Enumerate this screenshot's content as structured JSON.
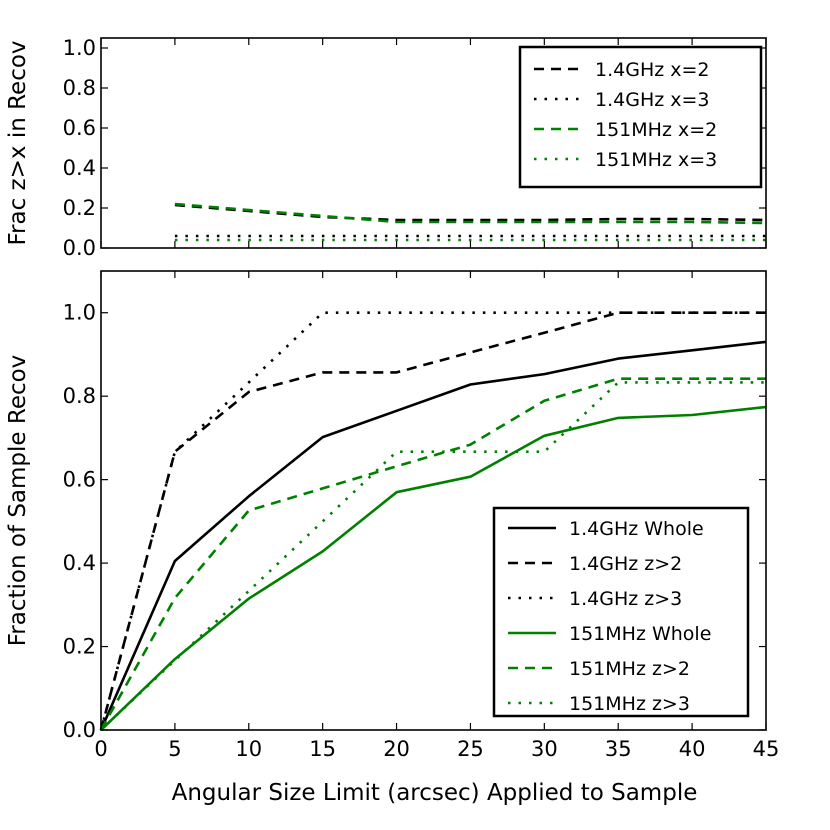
{
  "chart_data": [
    {
      "type": "line",
      "panel": "top",
      "title": "",
      "xlabel": "",
      "ylabel": "Frac z>x in Recov",
      "xlim": [
        0,
        45
      ],
      "ylim": [
        0.0,
        1.05
      ],
      "xticks": [
        0,
        5,
        10,
        15,
        20,
        25,
        30,
        35,
        40,
        45
      ],
      "yticks": [
        0.0,
        0.2,
        0.4,
        0.6,
        0.8,
        1.0
      ],
      "ytick_labels": [
        "0.0",
        "0.2",
        "0.4",
        "0.6",
        "0.8",
        "1.0"
      ],
      "legend_position": "top-right",
      "series": [
        {
          "name": "1.4GHz x=2",
          "color": "#000000",
          "style": "dashed",
          "x": [
            5,
            10,
            15,
            20,
            25,
            30,
            35,
            40,
            45
          ],
          "values": [
            0.215,
            0.185,
            0.155,
            0.14,
            0.14,
            0.14,
            0.145,
            0.145,
            0.14
          ]
        },
        {
          "name": "1.4GHz x=3",
          "color": "#000000",
          "style": "dotted",
          "x": [
            5,
            10,
            15,
            20,
            25,
            30,
            35,
            40,
            45
          ],
          "values": [
            0.06,
            0.06,
            0.06,
            0.06,
            0.06,
            0.06,
            0.06,
            0.06,
            0.06
          ]
        },
        {
          "name": "151MHz x=2",
          "color": "#008000",
          "style": "dashed",
          "x": [
            5,
            10,
            15,
            20,
            25,
            30,
            35,
            40,
            45
          ],
          "values": [
            0.22,
            0.19,
            0.16,
            0.13,
            0.13,
            0.13,
            0.13,
            0.13,
            0.125
          ]
        },
        {
          "name": "151MHz x=3",
          "color": "#008000",
          "style": "dotted",
          "x": [
            5,
            10,
            15,
            20,
            25,
            30,
            35,
            40,
            45
          ],
          "values": [
            0.04,
            0.04,
            0.04,
            0.04,
            0.04,
            0.04,
            0.04,
            0.04,
            0.04
          ]
        }
      ]
    },
    {
      "type": "line",
      "panel": "bottom",
      "title": "",
      "xlabel": "Angular Size Limit (arcsec) Applied to Sample",
      "ylabel": "Fraction of Sample Recov",
      "xlim": [
        0,
        45
      ],
      "ylim": [
        0.0,
        1.1
      ],
      "xticks": [
        0,
        5,
        10,
        15,
        20,
        25,
        30,
        35,
        40,
        45
      ],
      "xtick_labels": [
        "0",
        "5",
        "10",
        "15",
        "20",
        "25",
        "30",
        "35",
        "40",
        "45"
      ],
      "yticks": [
        0.0,
        0.2,
        0.4,
        0.6,
        0.8,
        1.0
      ],
      "ytick_labels": [
        "0.0",
        "0.2",
        "0.4",
        "0.6",
        "0.8",
        "1.0"
      ],
      "legend_position": "bottom-right",
      "series": [
        {
          "name": "1.4GHz Whole",
          "color": "#000000",
          "style": "solid",
          "x": [
            0,
            5,
            10,
            15,
            20,
            25,
            30,
            35,
            40,
            45
          ],
          "values": [
            0.0,
            0.405,
            0.56,
            0.702,
            0.765,
            0.828,
            0.853,
            0.89,
            0.91,
            0.93
          ]
        },
        {
          "name": "1.4GHz z>2",
          "color": "#000000",
          "style": "dashed",
          "x": [
            0,
            5,
            10,
            15,
            20,
            25,
            30,
            35,
            40,
            45
          ],
          "values": [
            0.0,
            0.667,
            0.81,
            0.857,
            0.857,
            0.905,
            0.952,
            1.0,
            1.0,
            1.0
          ]
        },
        {
          "name": "1.4GHz z>3",
          "color": "#000000",
          "style": "dotted",
          "x": [
            0,
            5,
            10,
            15,
            20,
            25,
            30,
            35,
            40,
            45
          ],
          "values": [
            0.0,
            0.667,
            0.833,
            1.0,
            1.0,
            1.0,
            1.0,
            1.0,
            1.0,
            1.0
          ]
        },
        {
          "name": "151MHz Whole",
          "color": "#008000",
          "style": "solid",
          "x": [
            0,
            5,
            10,
            15,
            20,
            25,
            30,
            35,
            40,
            45
          ],
          "values": [
            0.0,
            0.17,
            0.315,
            0.428,
            0.57,
            0.607,
            0.705,
            0.748,
            0.755,
            0.774
          ]
        },
        {
          "name": "151MHz z>2",
          "color": "#008000",
          "style": "dashed",
          "x": [
            0,
            5,
            10,
            15,
            20,
            25,
            30,
            35,
            40,
            45
          ],
          "values": [
            0.0,
            0.316,
            0.526,
            0.579,
            0.632,
            0.684,
            0.789,
            0.842,
            0.842,
            0.842
          ]
        },
        {
          "name": "151MHz z>3",
          "color": "#008000",
          "style": "dotted",
          "x": [
            0,
            5,
            10,
            15,
            20,
            25,
            30,
            35,
            40,
            45
          ],
          "values": [
            0.0,
            0.167,
            0.333,
            0.5,
            0.667,
            0.667,
            0.667,
            0.833,
            0.833,
            0.833
          ]
        }
      ]
    }
  ]
}
